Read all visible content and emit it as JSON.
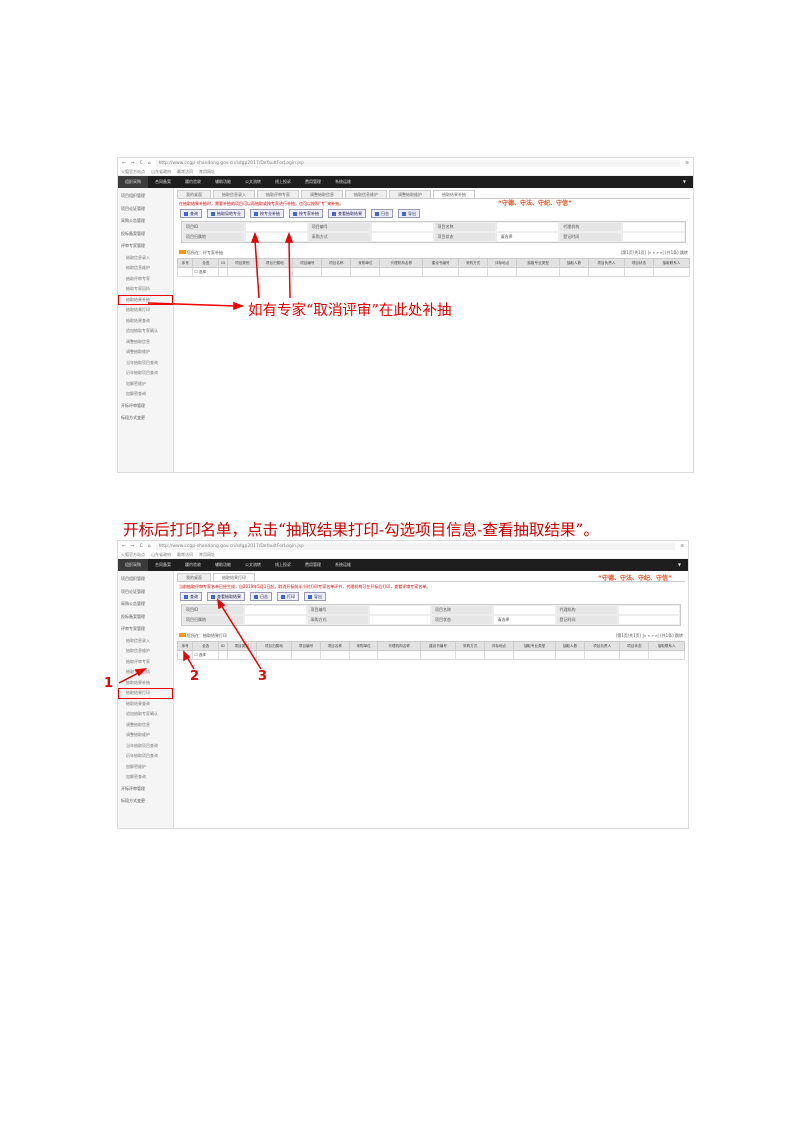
{
  "caption": "开标后打印名单，点击“抽取结果打印-勾选项目信息-查看抽取结果”。",
  "browser": {
    "url": "http://www.ccgp-shandong.gov.cn/sdgp2017/DefaultForLogin.jsp",
    "bookmarks": [
      "火狐官方站点",
      "山东省政府",
      "最常访问",
      "常用网址"
    ]
  },
  "nav": [
    "组织采购",
    "合同备案",
    "履约验收",
    "辅助功能",
    "公文流转",
    "线上投诉",
    "费用管理",
    "系统运维"
  ],
  "sidebar": {
    "top": [
      "项目组织管理",
      "项目论证管理",
      "采购公告管理",
      "投标备案管理",
      "评审专家管理"
    ],
    "sub": [
      "抽取信息录入",
      "抽取信息维护",
      "抽取评审专家",
      "抽取专家回执",
      "抽取结果补抽",
      "抽取结果打印",
      "抽取结果查询",
      "追加抽取专家确认",
      "调整抽取信息",
      "调整抽取维护",
      "当年抽取项目查询",
      "历年抽取项目查询",
      "加解密维护",
      "加解密查询"
    ],
    "bottom": [
      "开标评审管理",
      "标段方式变更"
    ]
  },
  "slogan": "“守德、守法、守纪、守信”",
  "shot1": {
    "tabs": [
      "我的桌面",
      "抽取信息录入",
      "抽取评审专家",
      "调整抽取信息",
      "抽取信息维护",
      "调整抽取维护",
      "抽取结果补抽"
    ],
    "notice": "在抽取结果补抽时，需要补抽的项目可以再抽取或按专家进行补抽，也可以按照“专”来补抽。",
    "buttons": [
      "查询",
      "抽取局地专业",
      "按专业补抽",
      "按专家补抽",
      "查看抽取结果",
      "日志",
      "导出"
    ],
    "location": "您所在：评专家补抽",
    "annotation": "如有专家“取消评审”在此处补抽"
  },
  "shot2": {
    "tabs": [
      "我的桌面",
      "抽取结果打印"
    ],
    "notice": "当前抽取评审专家名单已经生成，自2019年5月1日起，取消开标前半小时打印专家名单环节，代理机构可在开标后打印，查看评审专家名单。",
    "buttons": [
      "查询",
      "查看抽取结果",
      "日志",
      "打印",
      "导出"
    ],
    "location": "您所在：抽取结果打印",
    "markers": [
      "1",
      "2",
      "3"
    ]
  },
  "filter": [
    "项目ID",
    "",
    "项目编号",
    "",
    "项目名称",
    "",
    "代理机构",
    "",
    "项目归属地",
    "",
    "采购方式",
    "",
    "项目状态",
    "请选择",
    "登记时间",
    ""
  ],
  "pager": "(第1页/共1页) |« « » »| (共1条)",
  "go": "跳转",
  "columns": [
    "序号",
    "全选",
    "ID",
    "项目类别",
    "项目归属地",
    "项目编号",
    "项目名称",
    "采购单位",
    "代理机构名称",
    "建设书编号",
    "采购方式",
    "评标地点",
    "抽取专业类型",
    "抽取人数",
    "项目负责人",
    "项目状态",
    "抽取联系人"
  ],
  "row_select": "选择"
}
